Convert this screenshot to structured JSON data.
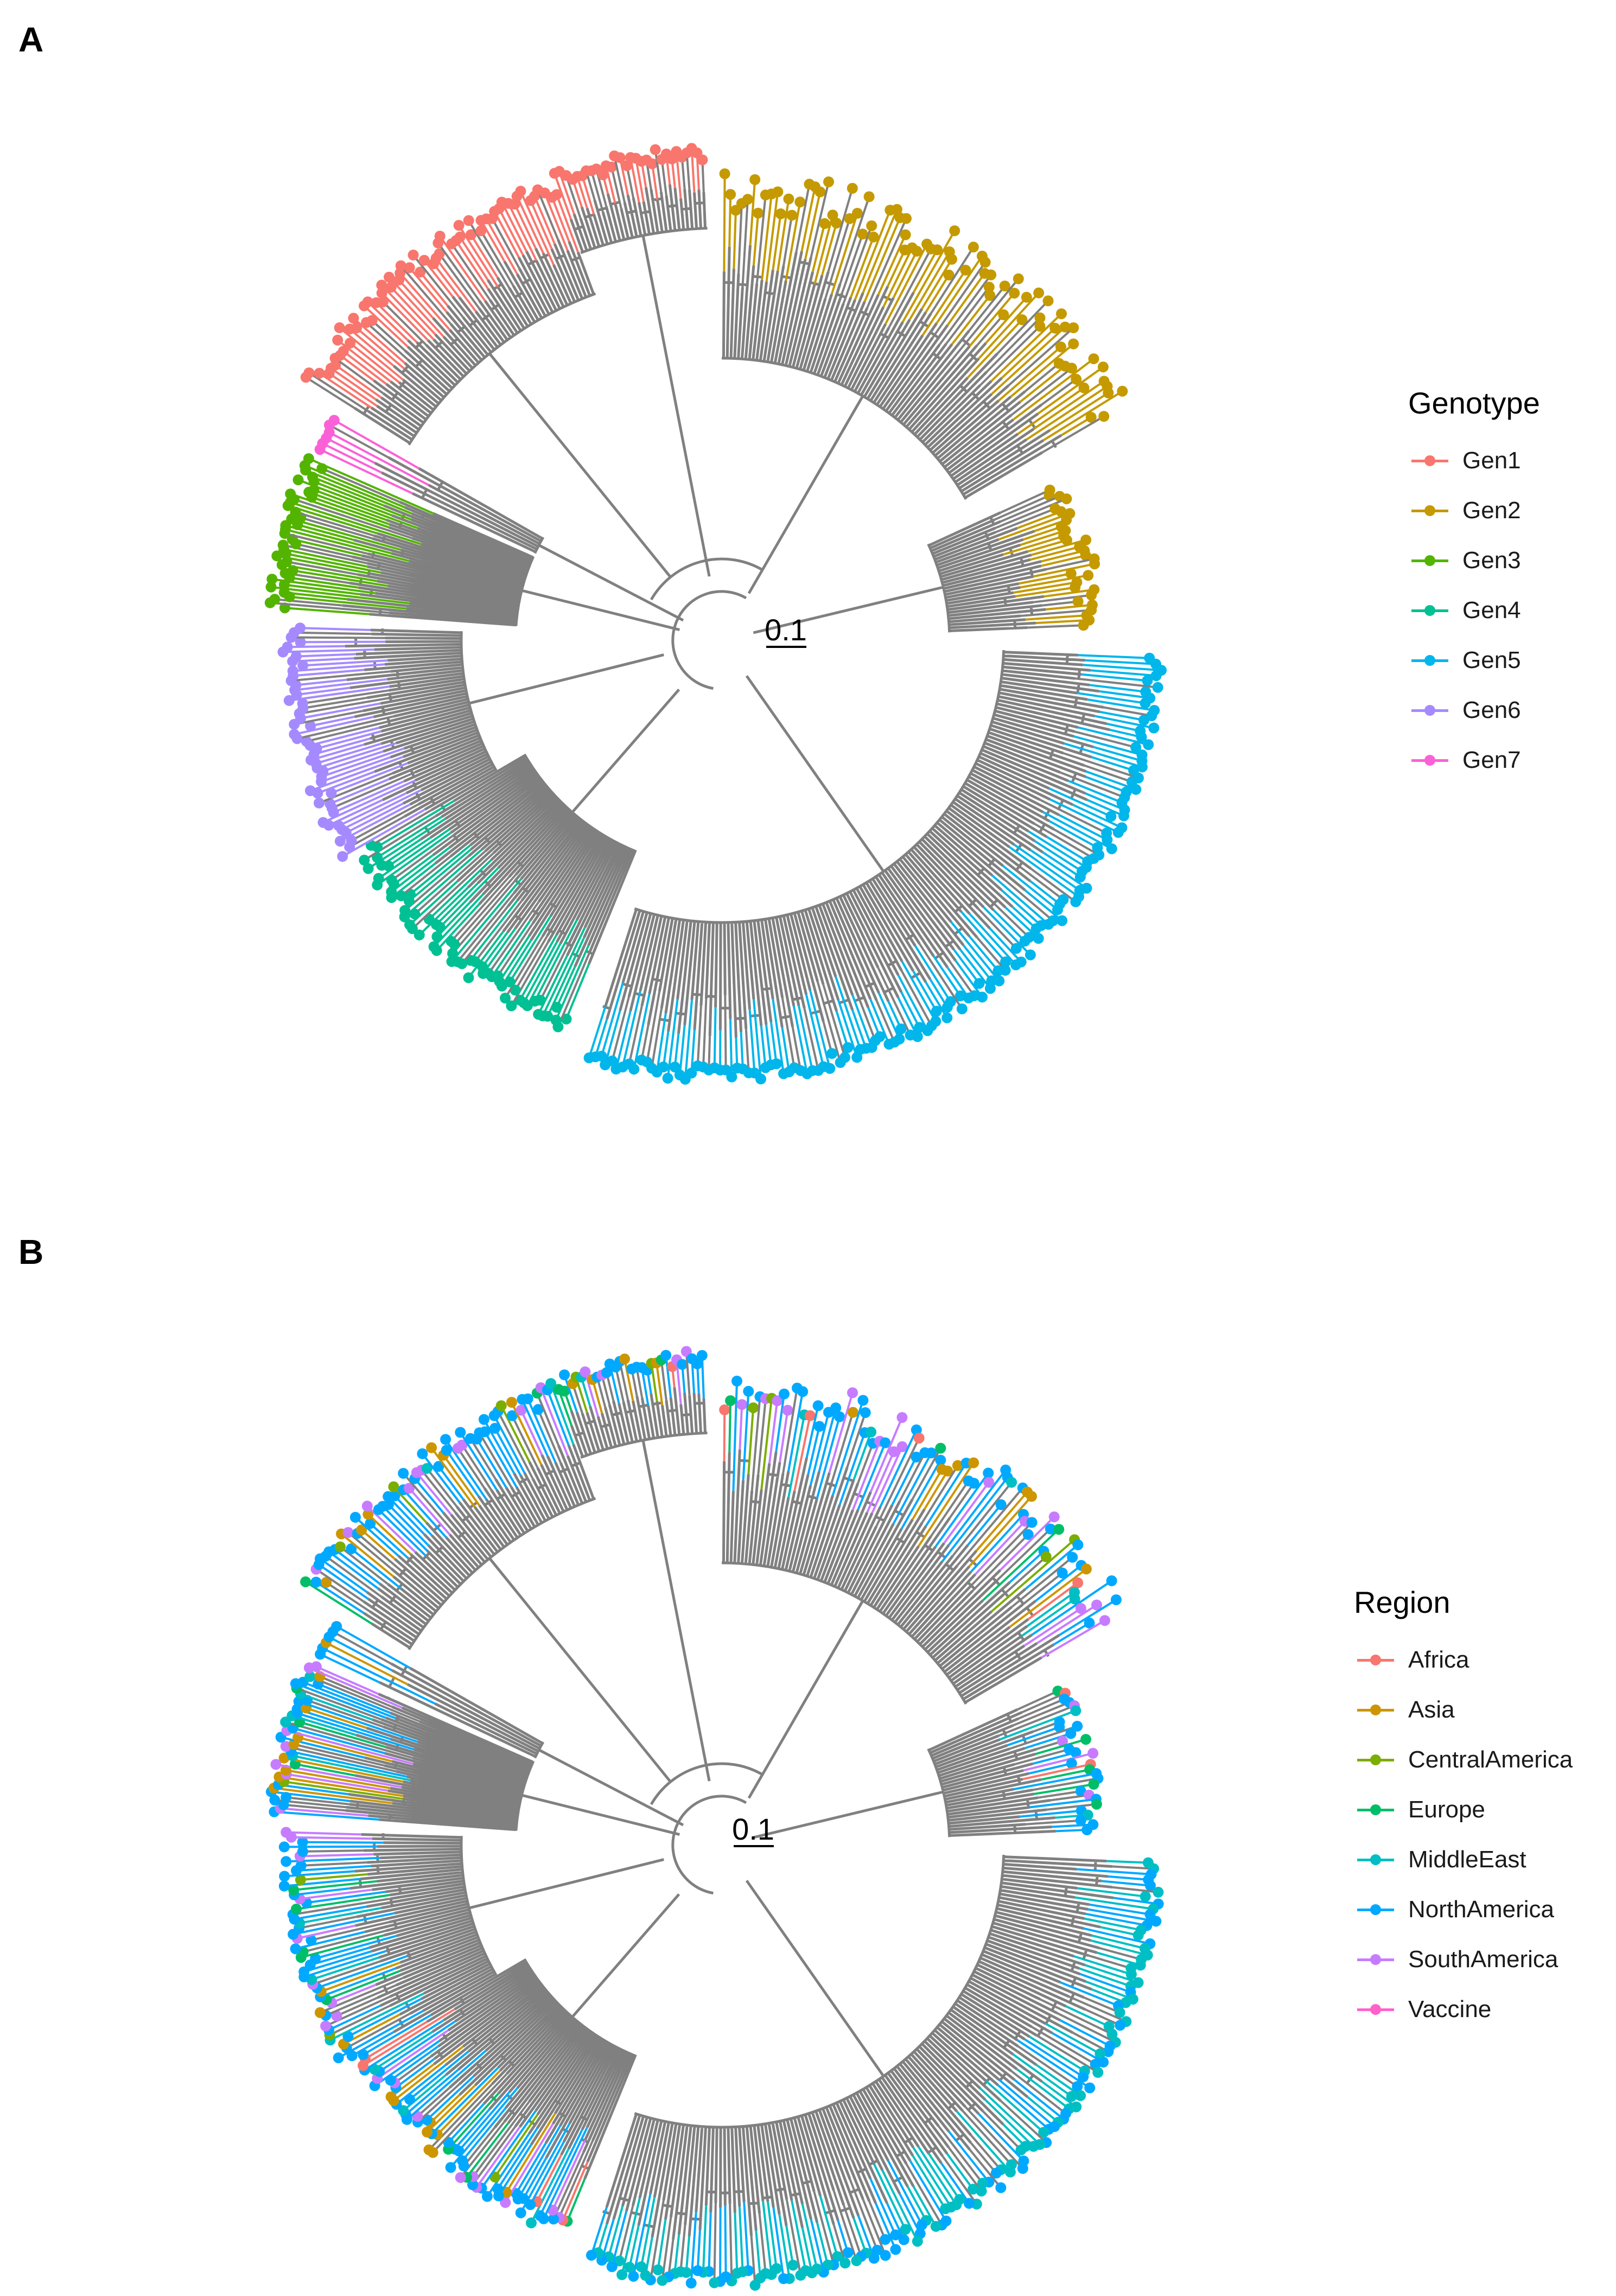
{
  "panels": [
    {
      "label": "A",
      "legend_title": "Genotype",
      "scale_label": "0.1",
      "legend": [
        {
          "name": "Gen1",
          "color": "#F8766D"
        },
        {
          "name": "Gen2",
          "color": "#C49A00"
        },
        {
          "name": "Gen3",
          "color": "#53B400"
        },
        {
          "name": "Gen4",
          "color": "#00C094"
        },
        {
          "name": "Gen5",
          "color": "#00B6EB"
        },
        {
          "name": "Gen6",
          "color": "#A58AFF"
        },
        {
          "name": "Gen7",
          "color": "#FB61D7"
        }
      ]
    },
    {
      "label": "B",
      "legend_title": "Region",
      "scale_label": "0.1",
      "legend": [
        {
          "name": "Africa",
          "color": "#F8766D"
        },
        {
          "name": "Asia",
          "color": "#CD9600"
        },
        {
          "name": "CentralAmerica",
          "color": "#7CAE00"
        },
        {
          "name": "Europe",
          "color": "#00BE67"
        },
        {
          "name": "MiddleEast",
          "color": "#00BFC4"
        },
        {
          "name": "NorthAmerica",
          "color": "#00A9FF"
        },
        {
          "name": "SouthAmerica",
          "color": "#C77CFF"
        },
        {
          "name": "Vaccine",
          "color": "#FF61CC"
        }
      ]
    }
  ],
  "branch_color": "#808080"
}
